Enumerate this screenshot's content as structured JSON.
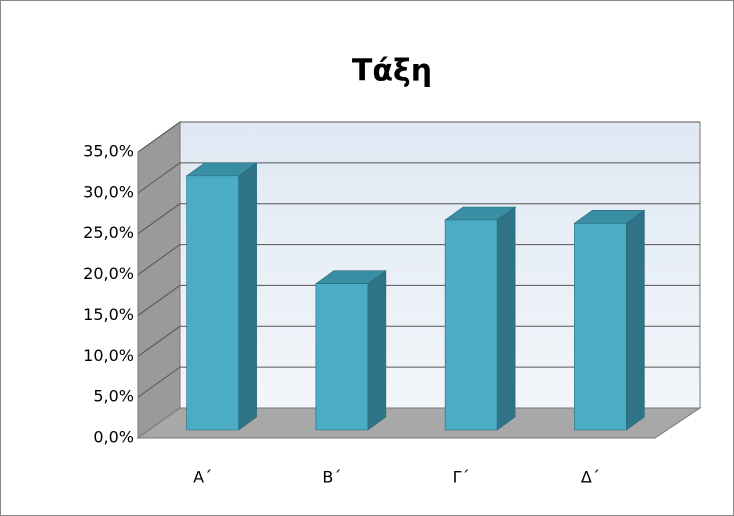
{
  "chart_data": {
    "type": "bar3d",
    "title": "Τάξη",
    "categories": [
      "Α΄",
      "Β΄",
      "Γ΄",
      "Δ΄"
    ],
    "values": [
      31.1,
      17.9,
      25.7,
      25.3
    ],
    "color": "#4bacc6",
    "ylim": [
      0,
      35
    ],
    "yticks": [
      {
        "value": 0,
        "label": "0,0%"
      },
      {
        "value": 5,
        "label": "5,0%"
      },
      {
        "value": 10,
        "label": "10,0%"
      },
      {
        "value": 15,
        "label": "15,0%"
      },
      {
        "value": 20,
        "label": "20,0%"
      },
      {
        "value": 25,
        "label": "25,0%"
      },
      {
        "value": 30,
        "label": "30,0%"
      },
      {
        "value": 35,
        "label": "35,0%"
      }
    ],
    "grid": true
  }
}
